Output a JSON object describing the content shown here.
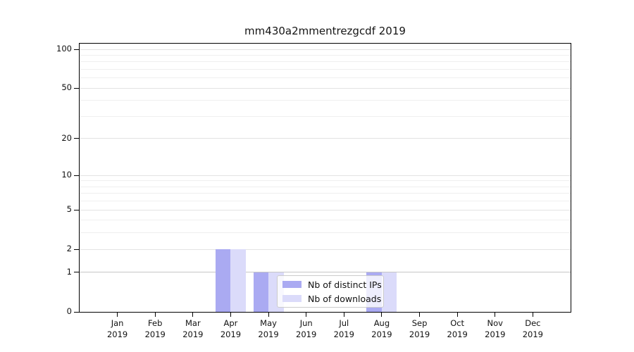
{
  "figure_title": "mm430a2mmentrezgcdf 2019",
  "chart_data": {
    "type": "bar",
    "title": "mm430a2mmentrezgcdf 2019",
    "x_categories": [
      {
        "month": "Jan",
        "year": "2019"
      },
      {
        "month": "Feb",
        "year": "2019"
      },
      {
        "month": "Mar",
        "year": "2019"
      },
      {
        "month": "Apr",
        "year": "2019"
      },
      {
        "month": "May",
        "year": "2019"
      },
      {
        "month": "Jun",
        "year": "2019"
      },
      {
        "month": "Jul",
        "year": "2019"
      },
      {
        "month": "Aug",
        "year": "2019"
      },
      {
        "month": "Sep",
        "year": "2019"
      },
      {
        "month": "Oct",
        "year": "2019"
      },
      {
        "month": "Nov",
        "year": "2019"
      },
      {
        "month": "Dec",
        "year": "2019"
      }
    ],
    "series": [
      {
        "name": "Nb of distinct IPs",
        "color": "#aaaaf2",
        "values": [
          0,
          0,
          0,
          2,
          1,
          0,
          0,
          1,
          0,
          0,
          0,
          0
        ]
      },
      {
        "name": "Nb of downloads",
        "color": "#dbdbfa",
        "values": [
          0,
          0,
          0,
          2,
          1,
          0,
          0,
          1,
          0,
          0,
          0,
          0
        ]
      }
    ],
    "y_axis": {
      "scale": "log1p",
      "ticks": [
        0,
        1,
        2,
        5,
        10,
        20,
        50,
        100
      ],
      "minor_gridlines": [
        3,
        4,
        6,
        7,
        8,
        9,
        30,
        40,
        60,
        70,
        80,
        90
      ],
      "range": [
        0,
        110
      ]
    },
    "legend": {
      "position": "lower-center-inside"
    },
    "grid": true,
    "colors": {
      "grid_minor": "#efefef",
      "grid_major": "#e3e3e3",
      "grid_unit_line": "#c6c6c6",
      "axis": "#000000",
      "background": "#ffffff"
    }
  }
}
